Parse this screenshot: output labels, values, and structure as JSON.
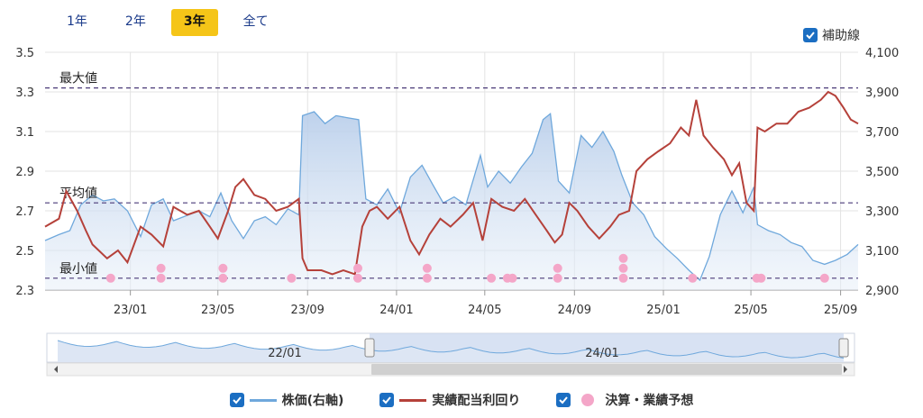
{
  "tabs": [
    {
      "label": "1年",
      "active": false
    },
    {
      "label": "2年",
      "active": false
    },
    {
      "label": "3年",
      "active": true
    },
    {
      "label": "全て",
      "active": false
    }
  ],
  "aux_line_label": "補助線",
  "legend": {
    "price_label": "株価(右軸)",
    "yield_label": "実績配当利回り",
    "earnings_label": "決算・業績予想"
  },
  "colors": {
    "price": "#6fa8dc",
    "yield": "#b5413a",
    "earnings": "#f4a6c8",
    "ref_line": "#4a3a78",
    "active_tab": "#f5c518",
    "checkbox": "#1b6ec2"
  },
  "chart_data": {
    "type": "line",
    "x_ticks": [
      "23/01",
      "23/05",
      "23/09",
      "24/01",
      "24/05",
      "24/09",
      "25/01",
      "25/05",
      "25/09"
    ],
    "x_range": [
      "2022-09-06",
      "2025-09-25"
    ],
    "y_left": {
      "ticks": [
        "3.5",
        "3.3",
        "3.1",
        "2.9",
        "2.7",
        "2.5",
        "2.3"
      ],
      "range": [
        2.3,
        3.5
      ]
    },
    "y_right": {
      "ticks": [
        "4,100",
        "3,900",
        "3,700",
        "3,500",
        "3,300",
        "3,100",
        "2,900"
      ],
      "range": [
        2900,
        4100
      ]
    },
    "reference_lines": [
      {
        "label": "最大値",
        "value": 3.32
      },
      {
        "label": "平均値",
        "value": 2.74
      },
      {
        "label": "最小値",
        "value": 2.36
      }
    ],
    "series": [
      {
        "name": "実績配当利回り",
        "axis": "left",
        "points": [
          [
            "2022-09-06",
            2.62
          ],
          [
            "2022-09-25",
            2.66
          ],
          [
            "2022-10-05",
            2.8
          ],
          [
            "2022-10-20",
            2.7
          ],
          [
            "2022-11-01",
            2.6
          ],
          [
            "2022-11-10",
            2.53
          ],
          [
            "2022-11-30",
            2.46
          ],
          [
            "2022-12-15",
            2.5
          ],
          [
            "2022-12-28",
            2.44
          ],
          [
            "2023-01-15",
            2.62
          ],
          [
            "2023-01-30",
            2.58
          ],
          [
            "2023-02-15",
            2.52
          ],
          [
            "2023-03-01",
            2.72
          ],
          [
            "2023-03-20",
            2.68
          ],
          [
            "2023-04-05",
            2.7
          ],
          [
            "2023-04-20",
            2.62
          ],
          [
            "2023-05-01",
            2.56
          ],
          [
            "2023-05-15",
            2.7
          ],
          [
            "2023-05-25",
            2.82
          ],
          [
            "2023-06-05",
            2.86
          ],
          [
            "2023-06-20",
            2.78
          ],
          [
            "2023-07-05",
            2.76
          ],
          [
            "2023-07-20",
            2.7
          ],
          [
            "2023-08-05",
            2.72
          ],
          [
            "2023-08-20",
            2.76
          ],
          [
            "2023-08-25",
            2.46
          ],
          [
            "2023-09-01",
            2.4
          ],
          [
            "2023-09-20",
            2.4
          ],
          [
            "2023-10-05",
            2.38
          ],
          [
            "2023-10-20",
            2.4
          ],
          [
            "2023-11-05",
            2.38
          ],
          [
            "2023-11-15",
            2.62
          ],
          [
            "2023-11-25",
            2.7
          ],
          [
            "2023-12-05",
            2.72
          ],
          [
            "2023-12-20",
            2.66
          ],
          [
            "2024-01-05",
            2.72
          ],
          [
            "2024-01-20",
            2.55
          ],
          [
            "2024-02-01",
            2.48
          ],
          [
            "2024-02-15",
            2.58
          ],
          [
            "2024-03-01",
            2.66
          ],
          [
            "2024-03-15",
            2.62
          ],
          [
            "2024-04-01",
            2.68
          ],
          [
            "2024-04-15",
            2.74
          ],
          [
            "2024-04-28",
            2.55
          ],
          [
            "2024-05-10",
            2.76
          ],
          [
            "2024-05-25",
            2.72
          ],
          [
            "2024-06-10",
            2.7
          ],
          [
            "2024-06-25",
            2.76
          ],
          [
            "2024-07-10",
            2.68
          ],
          [
            "2024-07-25",
            2.6
          ],
          [
            "2024-08-05",
            2.54
          ],
          [
            "2024-08-15",
            2.58
          ],
          [
            "2024-08-25",
            2.74
          ],
          [
            "2024-09-05",
            2.7
          ],
          [
            "2024-09-20",
            2.62
          ],
          [
            "2024-10-05",
            2.56
          ],
          [
            "2024-10-20",
            2.62
          ],
          [
            "2024-11-01",
            2.68
          ],
          [
            "2024-11-15",
            2.7
          ],
          [
            "2024-11-25",
            2.9
          ],
          [
            "2024-12-10",
            2.96
          ],
          [
            "2024-12-25",
            3.0
          ],
          [
            "2025-01-10",
            3.04
          ],
          [
            "2025-01-25",
            3.12
          ],
          [
            "2025-02-05",
            3.08
          ],
          [
            "2025-02-15",
            3.26
          ],
          [
            "2025-02-25",
            3.08
          ],
          [
            "2025-03-10",
            3.02
          ],
          [
            "2025-03-25",
            2.96
          ],
          [
            "2025-04-05",
            2.88
          ],
          [
            "2025-04-15",
            2.94
          ],
          [
            "2025-04-25",
            2.74
          ],
          [
            "2025-05-05",
            2.7
          ],
          [
            "2025-05-10",
            3.12
          ],
          [
            "2025-05-20",
            3.1
          ],
          [
            "2025-06-05",
            3.14
          ],
          [
            "2025-06-20",
            3.14
          ],
          [
            "2025-07-05",
            3.2
          ],
          [
            "2025-07-20",
            3.22
          ],
          [
            "2025-08-05",
            3.26
          ],
          [
            "2025-08-15",
            3.3
          ],
          [
            "2025-08-25",
            3.28
          ],
          [
            "2025-09-05",
            3.22
          ],
          [
            "2025-09-15",
            3.16
          ],
          [
            "2025-09-25",
            3.14
          ]
        ]
      },
      {
        "name": "株価(右軸)",
        "axis": "right",
        "points": [
          [
            "2022-09-06",
            3150
          ],
          [
            "2022-09-25",
            3180
          ],
          [
            "2022-10-10",
            3200
          ],
          [
            "2022-10-25",
            3330
          ],
          [
            "2022-11-10",
            3380
          ],
          [
            "2022-11-25",
            3350
          ],
          [
            "2022-12-10",
            3360
          ],
          [
            "2022-12-28",
            3300
          ],
          [
            "2023-01-15",
            3170
          ],
          [
            "2023-01-30",
            3330
          ],
          [
            "2023-02-15",
            3360
          ],
          [
            "2023-03-01",
            3250
          ],
          [
            "2023-03-15",
            3270
          ],
          [
            "2023-04-05",
            3300
          ],
          [
            "2023-04-20",
            3270
          ],
          [
            "2023-05-05",
            3390
          ],
          [
            "2023-05-20",
            3250
          ],
          [
            "2023-06-05",
            3160
          ],
          [
            "2023-06-20",
            3250
          ],
          [
            "2023-07-05",
            3270
          ],
          [
            "2023-07-20",
            3230
          ],
          [
            "2023-08-05",
            3310
          ],
          [
            "2023-08-20",
            3280
          ],
          [
            "2023-08-25",
            3780
          ],
          [
            "2023-09-10",
            3800
          ],
          [
            "2023-09-25",
            3740
          ],
          [
            "2023-10-10",
            3780
          ],
          [
            "2023-10-25",
            3770
          ],
          [
            "2023-11-10",
            3760
          ],
          [
            "2023-11-20",
            3360
          ],
          [
            "2023-12-05",
            3330
          ],
          [
            "2023-12-20",
            3410
          ],
          [
            "2024-01-05",
            3290
          ],
          [
            "2024-01-20",
            3470
          ],
          [
            "2024-02-05",
            3530
          ],
          [
            "2024-02-20",
            3430
          ],
          [
            "2024-03-05",
            3340
          ],
          [
            "2024-03-20",
            3370
          ],
          [
            "2024-04-05",
            3330
          ],
          [
            "2024-04-25",
            3580
          ],
          [
            "2024-05-05",
            3420
          ],
          [
            "2024-05-20",
            3500
          ],
          [
            "2024-06-05",
            3440
          ],
          [
            "2024-06-20",
            3520
          ],
          [
            "2024-07-05",
            3590
          ],
          [
            "2024-07-20",
            3760
          ],
          [
            "2024-07-30",
            3790
          ],
          [
            "2024-08-10",
            3450
          ],
          [
            "2024-08-25",
            3390
          ],
          [
            "2024-09-10",
            3680
          ],
          [
            "2024-09-25",
            3620
          ],
          [
            "2024-10-10",
            3700
          ],
          [
            "2024-10-25",
            3600
          ],
          [
            "2024-11-05",
            3480
          ],
          [
            "2024-11-20",
            3340
          ],
          [
            "2024-12-05",
            3280
          ],
          [
            "2024-12-20",
            3170
          ],
          [
            "2025-01-05",
            3110
          ],
          [
            "2025-01-20",
            3060
          ],
          [
            "2025-02-05",
            3000
          ],
          [
            "2025-02-20",
            2950
          ],
          [
            "2025-03-05",
            3070
          ],
          [
            "2025-03-20",
            3280
          ],
          [
            "2025-04-05",
            3400
          ],
          [
            "2025-04-20",
            3290
          ],
          [
            "2025-05-05",
            3420
          ],
          [
            "2025-05-10",
            3230
          ],
          [
            "2025-05-25",
            3200
          ],
          [
            "2025-06-10",
            3180
          ],
          [
            "2025-06-25",
            3140
          ],
          [
            "2025-07-10",
            3120
          ],
          [
            "2025-07-25",
            3050
          ],
          [
            "2025-08-10",
            3030
          ],
          [
            "2025-08-25",
            3050
          ],
          [
            "2025-09-10",
            3080
          ],
          [
            "2025-09-25",
            3130
          ]
        ]
      }
    ],
    "earnings_events": [
      {
        "date": "2022-12-05",
        "count": 1
      },
      {
        "date": "2023-02-12",
        "count": 2
      },
      {
        "date": "2023-05-08",
        "count": 2
      },
      {
        "date": "2023-08-10",
        "count": 1
      },
      {
        "date": "2023-11-09",
        "count": 2
      },
      {
        "date": "2024-02-12",
        "count": 2
      },
      {
        "date": "2024-05-10",
        "count": 1
      },
      {
        "date": "2024-06-01",
        "count": 1
      },
      {
        "date": "2024-06-08",
        "count": 1
      },
      {
        "date": "2024-08-09",
        "count": 2
      },
      {
        "date": "2024-11-07",
        "count": 3
      },
      {
        "date": "2025-02-10",
        "count": 1
      },
      {
        "date": "2025-05-09",
        "count": 1
      },
      {
        "date": "2025-05-15",
        "count": 1
      },
      {
        "date": "2025-08-10",
        "count": 1
      }
    ],
    "navigator": {
      "labels": [
        "22/01",
        "24/01"
      ]
    }
  }
}
